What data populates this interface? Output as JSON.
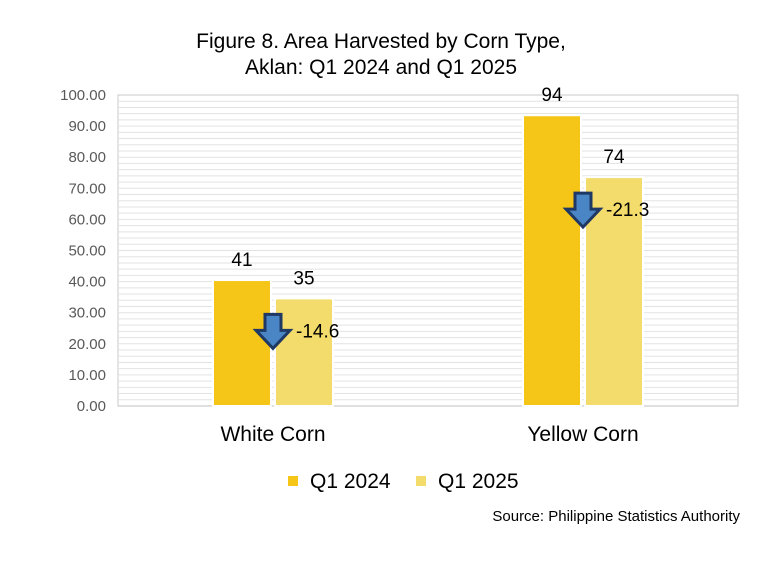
{
  "chart_data": {
    "type": "bar",
    "title_lines": [
      "Figure 8. Area Harvested by Corn Type,",
      "Aklan: Q1 2024 and Q1 2025"
    ],
    "categories": [
      "White Corn",
      "Yellow Corn"
    ],
    "series": [
      {
        "name": "Q1 2024",
        "values": [
          40.5,
          93.5
        ],
        "labels": [
          "41",
          "94"
        ],
        "color": "#F5C518"
      },
      {
        "name": "Q1 2025",
        "values": [
          34.6,
          73.6
        ],
        "labels": [
          "35",
          "74"
        ],
        "color": "#F3DC6B"
      }
    ],
    "change_labels": [
      "-14.6",
      "-21.3"
    ],
    "change_direction": "down",
    "arrow_color": "#1F3864",
    "arrow_fill": "#4A86C5",
    "ylim": [
      0,
      100
    ],
    "yticks": [
      "0.00",
      "10.00",
      "20.00",
      "30.00",
      "40.00",
      "50.00",
      "60.00",
      "70.00",
      "80.00",
      "90.00",
      "100.00"
    ],
    "grid": true,
    "legend_position": "bottom",
    "source": "Source: Philippine Statistics Authority"
  }
}
